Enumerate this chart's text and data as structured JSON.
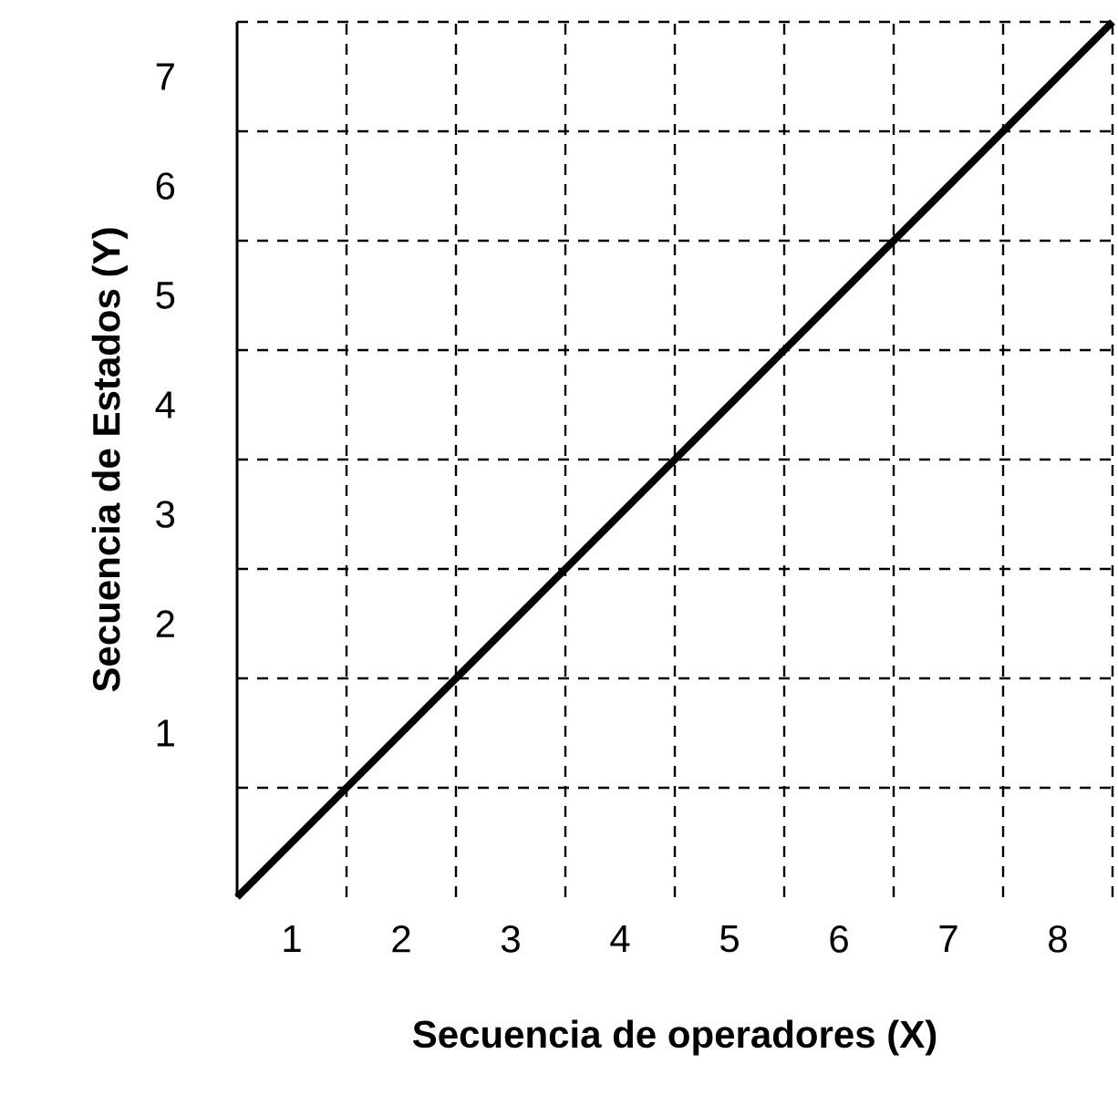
{
  "chart_data": {
    "type": "line",
    "xlabel": "Secuencia de operadores (X)",
    "ylabel": "Secuencia de Estados (Y)",
    "x": [
      0,
      8
    ],
    "series": [
      {
        "color": "#000000",
        "values": [
          0,
          8
        ]
      }
    ],
    "xlim": [
      0,
      8
    ],
    "ylim": [
      0,
      8
    ],
    "xticks": [
      {
        "value": 0.5,
        "label": "1"
      },
      {
        "value": 1.5,
        "label": "2"
      },
      {
        "value": 2.5,
        "label": "3"
      },
      {
        "value": 3.5,
        "label": "4"
      },
      {
        "value": 4.5,
        "label": "5"
      },
      {
        "value": 5.5,
        "label": "6"
      },
      {
        "value": 6.5,
        "label": "7"
      },
      {
        "value": 7.5,
        "label": "8"
      },
      {
        "value": 1,
        "label": null
      },
      {
        "value": 2,
        "label": null
      },
      {
        "value": 3,
        "label": null
      },
      {
        "value": 4,
        "label": null
      },
      {
        "value": 5,
        "label": null
      },
      {
        "value": 6,
        "label": null
      },
      {
        "value": 7,
        "label": null
      },
      {
        "value": 8,
        "label": null
      }
    ],
    "yticks": [
      {
        "value": 1.5,
        "label": "1"
      },
      {
        "value": 2.5,
        "label": "2"
      },
      {
        "value": 3.5,
        "label": "3"
      },
      {
        "value": 4.5,
        "label": "4"
      },
      {
        "value": 5.5,
        "label": "5"
      },
      {
        "value": 6.5,
        "label": "6"
      },
      {
        "value": 7.5,
        "label": "7"
      },
      {
        "value": 1,
        "label": null
      },
      {
        "value": 2,
        "label": null
      },
      {
        "value": 3,
        "label": null
      },
      {
        "value": 4,
        "label": null
      },
      {
        "value": 5,
        "label": null
      },
      {
        "value": 6,
        "label": null
      },
      {
        "value": 7,
        "label": null
      },
      {
        "value": 8,
        "label": null
      }
    ],
    "grid": true,
    "line_style": "solid",
    "marker": "none"
  }
}
